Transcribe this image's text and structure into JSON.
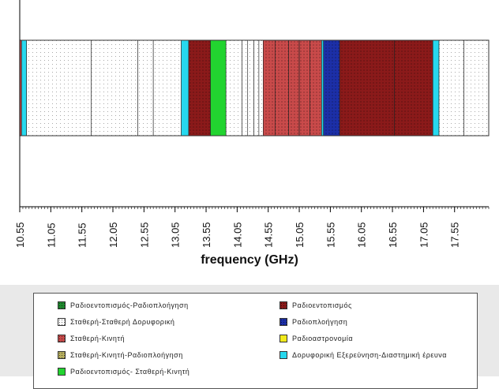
{
  "chart_data": {
    "type": "bar",
    "orientation": "horizontal-spectrum",
    "xlabel": "frequency (GHz)",
    "x_ticks": [
      "10.55",
      "11.05",
      "11.55",
      "12.05",
      "12.55",
      "13.05",
      "13.55",
      "14.05",
      "14.55",
      "15.05",
      "15.55",
      "16.05",
      "16.55",
      "17.05",
      "17.55"
    ],
    "xlim": [
      10.55,
      18.1
    ],
    "grid": false,
    "categories": [
      {
        "key": "radio_nav",
        "label": "Ραδιοεντοπισμός-Ραδιοπλοήγηση",
        "color": "#1f8a2e",
        "pattern": "dots-dark"
      },
      {
        "key": "radiolocation",
        "label": "Ραδιοεντοπισμός",
        "color": "#8b1a1a",
        "pattern": "dots"
      },
      {
        "key": "fixed_fss",
        "label": "Σταθερή-Σταθερή Δορυφορική",
        "color": "#ffffff",
        "pattern": "dots-light"
      },
      {
        "key": "radionav",
        "label": "Ραδιοπλοήγηση",
        "color": "#1c2fa8",
        "pattern": "dots"
      },
      {
        "key": "fixed_mobile",
        "label": "Σταθερή-Κινητή",
        "color": "#c94a4a",
        "pattern": "dots"
      },
      {
        "key": "radioastronomy",
        "label": "Ραδιοαστρονομία",
        "color": "#f2ea1c",
        "pattern": "solid"
      },
      {
        "key": "fixed_mobile_nav",
        "label": "Σταθερή-Κινητή-Ραδιοπλοήγηση",
        "color": "#b8b060",
        "pattern": "dots"
      },
      {
        "key": "sat_research",
        "label": "Δορυφορική Εξερεύνηση-Διαστημική έρευνα",
        "color": "#27d8ee",
        "pattern": "solid"
      },
      {
        "key": "radioloc_fixed_mobile",
        "label": "Ραδιοεντοπισμός- Σταθερή-Κινητή",
        "color": "#22d430",
        "pattern": "solid"
      }
    ],
    "bands": [
      {
        "start": 10.55,
        "end": 10.58,
        "cat": "fixed_mobile"
      },
      {
        "start": 10.58,
        "end": 10.66,
        "cat": "sat_research"
      },
      {
        "start": 10.66,
        "end": 11.7,
        "cat": "fixed_fss"
      },
      {
        "start": 11.7,
        "end": 12.45,
        "cat": "fixed_fss"
      },
      {
        "start": 12.45,
        "end": 12.7,
        "cat": "fixed_fss"
      },
      {
        "start": 12.7,
        "end": 13.15,
        "cat": "fixed_fss"
      },
      {
        "start": 13.15,
        "end": 13.27,
        "cat": "sat_research"
      },
      {
        "start": 13.27,
        "end": 13.62,
        "cat": "radiolocation"
      },
      {
        "start": 13.62,
        "end": 13.87,
        "cat": "radioloc_fixed_mobile"
      },
      {
        "start": 13.87,
        "end": 14.13,
        "cat": "fixed_fss"
      },
      {
        "start": 14.13,
        "end": 14.22,
        "cat": "fixed_fss"
      },
      {
        "start": 14.22,
        "end": 14.32,
        "cat": "fixed_fss"
      },
      {
        "start": 14.32,
        "end": 14.4,
        "cat": "fixed_fss"
      },
      {
        "start": 14.4,
        "end": 14.47,
        "cat": "fixed_fss"
      },
      {
        "start": 14.47,
        "end": 14.66,
        "cat": "fixed_mobile"
      },
      {
        "start": 14.66,
        "end": 14.88,
        "cat": "fixed_mobile"
      },
      {
        "start": 14.88,
        "end": 15.05,
        "cat": "fixed_mobile"
      },
      {
        "start": 15.05,
        "end": 15.22,
        "cat": "fixed_mobile"
      },
      {
        "start": 15.22,
        "end": 15.41,
        "cat": "fixed_mobile"
      },
      {
        "start": 15.41,
        "end": 15.44,
        "cat": "sat_research"
      },
      {
        "start": 15.44,
        "end": 15.7,
        "cat": "radionav"
      },
      {
        "start": 15.7,
        "end": 16.58,
        "cat": "radiolocation"
      },
      {
        "start": 16.58,
        "end": 17.2,
        "cat": "radiolocation"
      },
      {
        "start": 17.2,
        "end": 17.3,
        "cat": "sat_research"
      },
      {
        "start": 17.3,
        "end": 17.7,
        "cat": "fixed_fss"
      },
      {
        "start": 17.7,
        "end": 18.1,
        "cat": "fixed_fss"
      }
    ]
  }
}
